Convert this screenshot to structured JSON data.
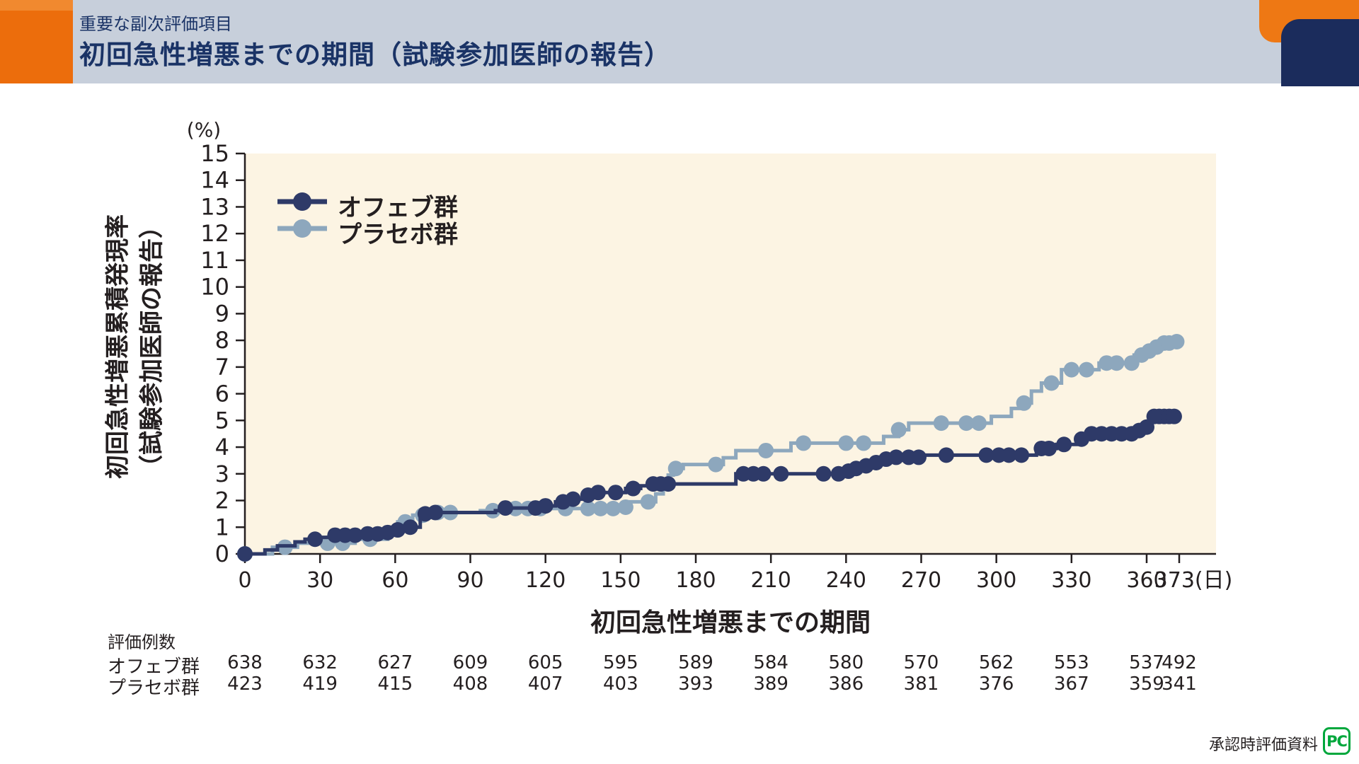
{
  "header": {
    "eyebrow": "重要な副次評価項目",
    "title": "初回急性増悪までの期間（試験参加医師の報告）"
  },
  "footer": {
    "source_label": "承認時評価資料",
    "logo_text": "PC"
  },
  "colors": {
    "band": "#c7cfdb",
    "orange_block": "#ec6d0c",
    "orange_strip": "#f1892f",
    "corner_orange": "#ee7814",
    "corner_navy": "#1b2c5c",
    "header_text": "#1a3366",
    "plot_bg": "#fcf4e3",
    "axis": "#241f20",
    "ofev": "#2e3a68",
    "placebo": "#8da7bd",
    "logo_green": "#00a73c"
  },
  "chart_data": {
    "type": "line",
    "subtype": "kaplan-meier-step-curve",
    "unit_label": "(%)",
    "ylabel_line1": "初回急性増悪累積発現率",
    "ylabel_line2": "（試験参加医師の報告）",
    "xlabel": "初回急性増悪までの期間",
    "x_unit_suffix": "(日)",
    "xlim": [
      0,
      373
    ],
    "ylim": [
      0,
      15
    ],
    "y_ticks": [
      0,
      1,
      2,
      3,
      4,
      5,
      6,
      7,
      8,
      9,
      10,
      11,
      12,
      13,
      14,
      15
    ],
    "x_ticks": [
      0,
      30,
      60,
      90,
      120,
      150,
      180,
      210,
      240,
      270,
      300,
      330,
      360,
      373
    ],
    "grid": false,
    "legend_position": "top-left-inside",
    "series": [
      {
        "name": "オフェブ群",
        "color": "#2e3a68",
        "steps": [
          [
            0,
            0
          ],
          [
            8,
            0.15
          ],
          [
            13,
            0.3
          ],
          [
            20,
            0.45
          ],
          [
            24,
            0.55
          ],
          [
            30,
            0.62
          ],
          [
            34,
            0.7
          ],
          [
            46,
            0.75
          ],
          [
            55,
            0.8
          ],
          [
            60,
            0.9
          ],
          [
            64,
            1.0
          ],
          [
            70,
            1.5
          ],
          [
            74,
            1.55
          ],
          [
            100,
            1.62
          ],
          [
            104,
            1.72
          ],
          [
            118,
            1.8
          ],
          [
            124,
            1.95
          ],
          [
            131,
            2.05
          ],
          [
            136,
            2.2
          ],
          [
            140,
            2.3
          ],
          [
            152,
            2.45
          ],
          [
            158,
            2.55
          ],
          [
            163,
            2.62
          ],
          [
            196,
            3.0
          ],
          [
            240,
            3.1
          ],
          [
            243,
            3.2
          ],
          [
            246,
            3.3
          ],
          [
            250,
            3.42
          ],
          [
            253,
            3.55
          ],
          [
            257,
            3.62
          ],
          [
            271,
            3.7
          ],
          [
            316,
            3.95
          ],
          [
            324,
            4.1
          ],
          [
            332,
            4.3
          ],
          [
            335,
            4.5
          ],
          [
            357,
            4.62
          ],
          [
            359,
            4.75
          ],
          [
            361,
            5.0
          ],
          [
            363,
            5.15
          ]
        ],
        "censor_days": [
          0,
          28,
          36,
          40,
          44,
          49,
          53,
          57,
          61,
          66,
          72,
          76,
          104,
          116,
          120,
          127,
          131,
          137,
          141,
          148,
          155,
          163,
          166,
          169,
          199,
          203,
          207,
          214,
          231,
          237,
          241,
          244,
          248,
          252,
          256,
          260,
          265,
          269,
          280,
          296,
          301,
          305,
          310,
          318,
          321,
          327,
          334,
          338,
          342,
          346,
          350,
          354,
          357,
          360,
          363,
          365,
          367,
          369,
          371
        ]
      },
      {
        "name": "プラセボ群",
        "color": "#8da7bd",
        "steps": [
          [
            0,
            0
          ],
          [
            11,
            0.25
          ],
          [
            21,
            0.4
          ],
          [
            44,
            0.55
          ],
          [
            57,
            0.8
          ],
          [
            61,
            1.2
          ],
          [
            67,
            1.45
          ],
          [
            73,
            1.55
          ],
          [
            94,
            1.62
          ],
          [
            104,
            1.7
          ],
          [
            148,
            1.75
          ],
          [
            154,
            1.95
          ],
          [
            164,
            2.25
          ],
          [
            167,
            2.6
          ],
          [
            169,
            2.95
          ],
          [
            171,
            3.2
          ],
          [
            175,
            3.35
          ],
          [
            191,
            3.6
          ],
          [
            196,
            3.87
          ],
          [
            218,
            4.15
          ],
          [
            255,
            4.4
          ],
          [
            261,
            4.65
          ],
          [
            265,
            4.9
          ],
          [
            298,
            5.15
          ],
          [
            306,
            5.45
          ],
          [
            310,
            5.65
          ],
          [
            314,
            6.1
          ],
          [
            318,
            6.4
          ],
          [
            326,
            6.9
          ],
          [
            341,
            7.15
          ],
          [
            355,
            7.45
          ],
          [
            359,
            7.6
          ],
          [
            362,
            7.75
          ],
          [
            365,
            7.9
          ],
          [
            370,
            7.95
          ]
        ],
        "censor_days": [
          0,
          16,
          33,
          39,
          50,
          64,
          71,
          77,
          82,
          99,
          108,
          113,
          118,
          128,
          137,
          142,
          147,
          152,
          161,
          172,
          188,
          208,
          223,
          240,
          247,
          261,
          278,
          288,
          293,
          311,
          322,
          330,
          336,
          344,
          348,
          354,
          358,
          361,
          364,
          367,
          369,
          372
        ]
      }
    ],
    "risk_table": {
      "label": "評価例数",
      "days": [
        0,
        30,
        60,
        90,
        120,
        150,
        180,
        210,
        240,
        270,
        300,
        330,
        360,
        373
      ],
      "rows": [
        {
          "name": "オフェブ群",
          "counts": [
            638,
            632,
            627,
            609,
            605,
            595,
            589,
            584,
            580,
            570,
            562,
            553,
            537,
            492
          ]
        },
        {
          "name": "プラセボ群",
          "counts": [
            423,
            419,
            415,
            408,
            407,
            403,
            393,
            389,
            386,
            381,
            376,
            367,
            359,
            341
          ]
        }
      ]
    }
  }
}
